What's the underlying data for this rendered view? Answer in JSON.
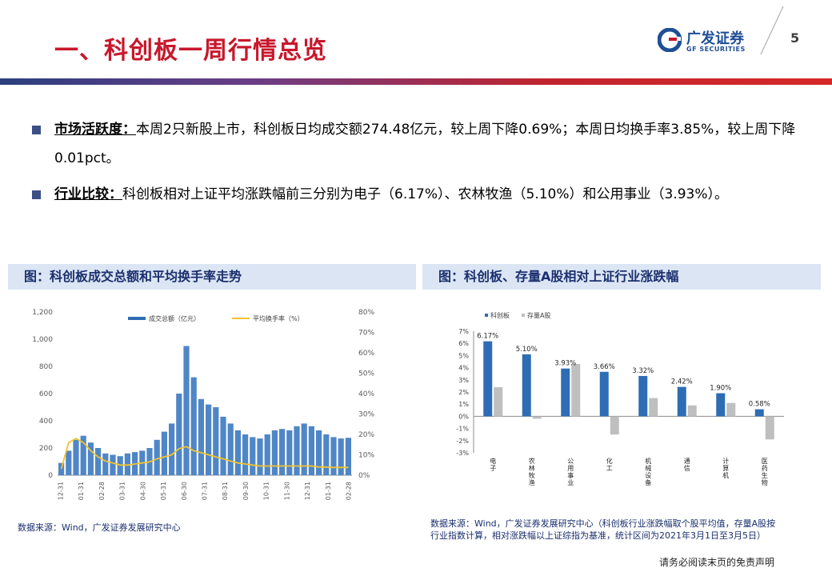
{
  "header": {
    "title": "一、科创板一周行情总览",
    "logo_cn": "广发证券",
    "logo_en": "GF SECURITIES",
    "page_number": "5"
  },
  "bullets": [
    {
      "lead": "市场活跃度：",
      "text": "本周2只新股上市，科创板日均成交额274.48亿元，较上周下降0.69%；本周日均换手率3.85%，较上周下降0.01pct。"
    },
    {
      "lead": "行业比较：",
      "text": "科创板相对上证平均涨跌幅前三分别为电子（6.17%）、农林牧渔（5.10%）和公用事业（3.93%）。"
    }
  ],
  "left_panel": {
    "header": "图：科创板成交总额和平均换手率走势",
    "source": "数据来源：Wind，广发证券发展研究中心"
  },
  "right_panel": {
    "header": "图：科创板、存量A股相对上证行业涨跌幅",
    "source_line1": "数据来源：Wind，广发证券发展研究中心（科创板行业涨跌幅取个股平均值，存量A股按",
    "source_line2": "行业指数计算，相对涨跌幅以上证综指为基准，统计区间为2021年3月1日至3月5日）"
  },
  "footer": {
    "disclaimer": "请务必阅读末页的免责声明"
  },
  "colors": {
    "title_red": "#c8172b",
    "navy": "#1a2f6e",
    "bar_blue": "#2e6db4",
    "bar_gray": "#bfbfbf",
    "turnover_line": "#f2c230"
  },
  "chart_data": [
    {
      "type": "bar",
      "title": "",
      "legend": [
        "成交总额（亿元）",
        "平均换手率（%）"
      ],
      "legend_placement": "top",
      "y_left": {
        "range": [
          0,
          1200
        ],
        "ticks": [
          "0",
          "200",
          "400",
          "600",
          "800",
          "1,000",
          "1,200"
        ]
      },
      "y_right": {
        "range": [
          0,
          80
        ],
        "ticks": [
          "0%",
          "10%",
          "20%",
          "30%",
          "40%",
          "50%",
          "60%",
          "70%",
          "80%"
        ]
      },
      "x_tick_labels": [
        "12-31",
        "01-31",
        "02-28",
        "03-31",
        "04-30",
        "05-31",
        "06-30",
        "07-31",
        "08-31",
        "09-30",
        "10-31",
        "11-30",
        "12-31",
        "01-31",
        "02-28"
      ],
      "series": [
        {
          "name": "成交总额（亿元）",
          "type": "bar",
          "values": [
            90,
            180,
            260,
            290,
            240,
            200,
            160,
            150,
            140,
            160,
            170,
            180,
            200,
            260,
            320,
            380,
            600,
            950,
            720,
            560,
            520,
            500,
            430,
            380,
            330,
            300,
            280,
            270,
            300,
            330,
            340,
            330,
            360,
            380,
            360,
            330,
            300,
            280,
            270,
            275
          ]
        },
        {
          "name": "平均换手率（%）",
          "type": "line",
          "values": [
            3,
            16,
            18,
            16,
            12,
            9,
            7,
            6,
            5,
            5,
            5.5,
            6,
            6.5,
            8,
            9,
            10,
            13,
            14,
            12,
            11,
            10,
            9,
            8,
            7,
            6,
            5.5,
            5,
            4.5,
            4.5,
            4.5,
            4.5,
            4.5,
            4.5,
            4.5,
            4.5,
            4,
            4,
            3.8,
            3.8,
            3.8
          ]
        }
      ]
    },
    {
      "type": "bar",
      "title": "",
      "legend": [
        "科创板",
        "存量A股"
      ],
      "legend_placement": "top-left",
      "ylim": [
        -3,
        7
      ],
      "y_ticks": [
        "7%",
        "6%",
        "5%",
        "4%",
        "3%",
        "2%",
        "1%",
        "0%",
        "-1%",
        "-2%",
        "-3%"
      ],
      "categories": [
        "电子",
        "农林牧渔",
        "公用事业",
        "化工",
        "机械设备",
        "通信",
        "计算机",
        "医药生物"
      ],
      "series": [
        {
          "name": "科创板",
          "values": [
            6.17,
            5.1,
            3.93,
            3.66,
            3.32,
            2.42,
            1.9,
            0.58
          ],
          "labels": [
            "6.17%",
            "5.10%",
            "3.93%",
            "3.66%",
            "3.32%",
            "2.42%",
            "1.90%",
            "0.58%"
          ]
        },
        {
          "name": "存量A股",
          "values": [
            2.4,
            -0.2,
            4.3,
            -1.5,
            1.5,
            0.9,
            1.1,
            -1.9
          ]
        }
      ]
    }
  ]
}
